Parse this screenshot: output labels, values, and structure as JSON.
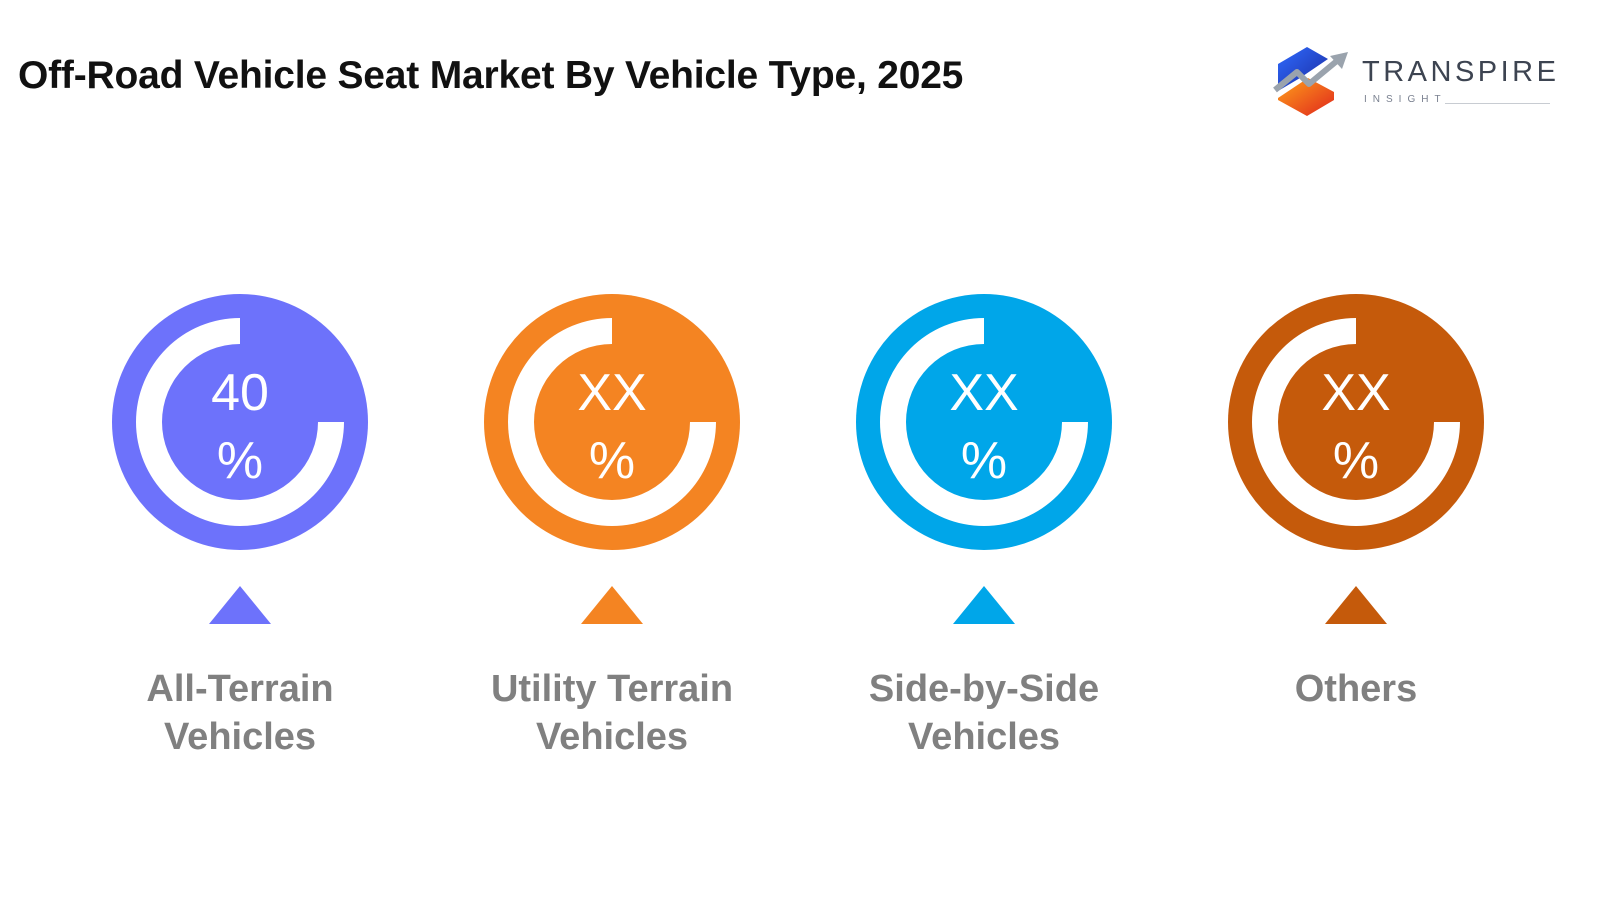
{
  "chart_data": {
    "type": "pie",
    "title": "Off-Road Vehicle Seat Market By Vehicle Type, 2025",
    "items": [
      {
        "label_lines": [
          "All-Terrain",
          "Vehicles"
        ],
        "value_text": "40",
        "unit": "%",
        "value": 40,
        "color": "#6d72fb"
      },
      {
        "label_lines": [
          "Utility Terrain",
          "Vehicles"
        ],
        "value_text": "XX",
        "unit": "%",
        "value": null,
        "color": "#f48422"
      },
      {
        "label_lines": [
          "Side-by-Side",
          "Vehicles"
        ],
        "value_text": "XX",
        "unit": "%",
        "value": null,
        "color": "#00a6e9"
      },
      {
        "label_lines": [
          "Others"
        ],
        "value_text": "XX",
        "unit": "%",
        "value": null,
        "color": "#c55a0b"
      }
    ]
  },
  "logo": {
    "name": "TRANSPIRE",
    "subtitle": "INSIGHT",
    "colors": [
      "#f15a24",
      "#1f3fc7",
      "#9aa3ad"
    ]
  }
}
